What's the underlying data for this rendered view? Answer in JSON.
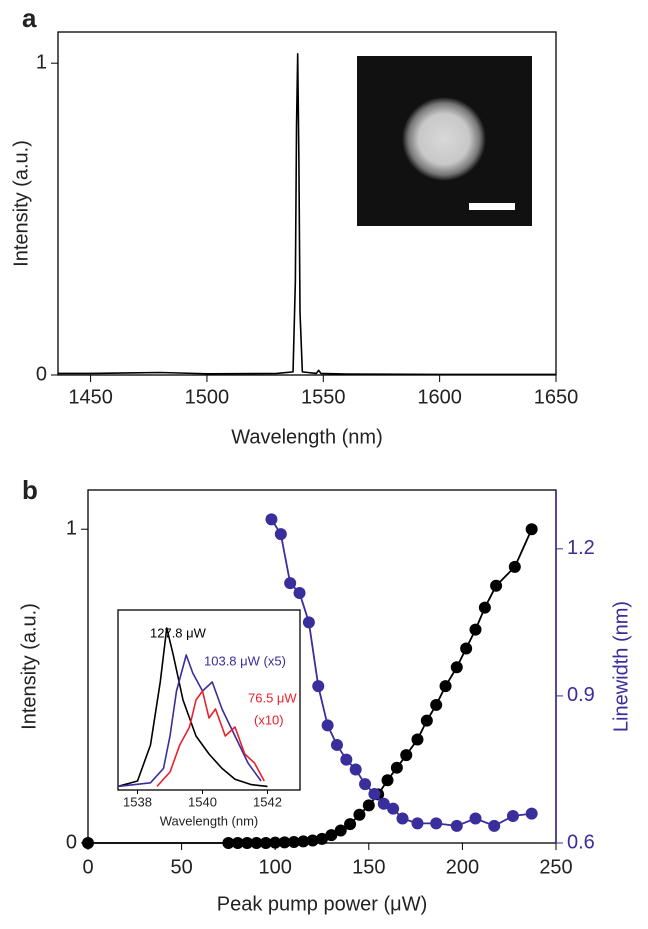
{
  "chart_data": [
    {
      "type": "line",
      "panel_label": "a",
      "xlabel": "Wavelength (nm)",
      "ylabel": "Intensity (a.u.)",
      "xlim": [
        1436,
        1650
      ],
      "xticks": [
        1450,
        1500,
        1550,
        1600,
        1650
      ],
      "ylim": [
        0,
        1.1
      ],
      "yticks": [
        0,
        1
      ],
      "series": [
        {
          "color": "#000000",
          "x": [
            1436,
            1450,
            1480,
            1500,
            1530,
            1537,
            1538,
            1538.5,
            1539,
            1539.5,
            1540,
            1541,
            1547,
            1548,
            1549,
            1560,
            1600,
            1650
          ],
          "values": [
            0.005,
            0.005,
            0.008,
            0.004,
            0.005,
            0.01,
            0.3,
            0.8,
            1.03,
            0.7,
            0.2,
            0.01,
            0.005,
            0.015,
            0.005,
            0.003,
            0.002,
            0.002
          ]
        }
      ]
    },
    {
      "type": "line",
      "markers": true,
      "panel_label": "b",
      "xlabel": "Peak pump power (μW)",
      "ylabel": "Intensity (a.u.)",
      "y2label": "Linewidth (nm)",
      "xlim": [
        0,
        250
      ],
      "xticks": [
        0,
        50,
        100,
        150,
        200,
        250
      ],
      "ylim": [
        0,
        1.125
      ],
      "yticks": [
        0,
        1
      ],
      "y2lim": [
        0.6,
        1.32
      ],
      "y2ticks": [
        0.6,
        0.9,
        1.2
      ],
      "series": [
        {
          "color": "#000000",
          "x": [
            0,
            75,
            80,
            85,
            90,
            95,
            100,
            105,
            110,
            115,
            120,
            125,
            130,
            135,
            140,
            145,
            150,
            155,
            160,
            165,
            170,
            176,
            181,
            186,
            191,
            197,
            202,
            207,
            212,
            218,
            228,
            237
          ],
          "values": [
            0,
            0,
            0,
            0,
            0,
            0,
            0.001,
            0.002,
            0.003,
            0.005,
            0.008,
            0.013,
            0.025,
            0.04,
            0.06,
            0.09,
            0.12,
            0.155,
            0.2,
            0.24,
            0.28,
            0.33,
            0.39,
            0.44,
            0.5,
            0.56,
            0.62,
            0.68,
            0.75,
            0.82,
            0.88,
            1.0
          ]
        },
        {
          "color": "#3a2d9c",
          "axis": "y2",
          "x": [
            98,
            103,
            108,
            113,
            118,
            123,
            128,
            133,
            138,
            143,
            148,
            153,
            158,
            163,
            168,
            176,
            186,
            197,
            207,
            217,
            227,
            237
          ],
          "values": [
            1.26,
            1.23,
            1.13,
            1.11,
            1.05,
            0.92,
            0.84,
            0.8,
            0.77,
            0.75,
            0.72,
            0.7,
            0.68,
            0.67,
            0.65,
            0.64,
            0.64,
            0.635,
            0.65,
            0.635,
            0.655,
            0.66
          ]
        }
      ]
    },
    {
      "type": "line",
      "xlabel": "Wavelength (nm)",
      "xlim": [
        1537.4,
        1543
      ],
      "xticks": [
        1538,
        1540,
        1542
      ],
      "ylim": [
        0,
        1
      ],
      "annotations": [
        {
          "text": "127.8 μW",
          "color": "#000000"
        },
        {
          "text": "103.8 μW (x5)",
          "color": "#3a2d9c"
        },
        {
          "text": "76.5 μW",
          "color": "#e8202a"
        },
        {
          "text": "(x10)",
          "color": "#e8202a"
        }
      ],
      "series": [
        {
          "color": "#000000",
          "x": [
            1537.4,
            1538.0,
            1538.4,
            1538.7,
            1538.9,
            1539.1,
            1539.4,
            1539.8,
            1540.2,
            1540.6,
            1541.0,
            1541.5,
            1542.0
          ],
          "values": [
            0.02,
            0.05,
            0.25,
            0.6,
            0.9,
            0.75,
            0.5,
            0.3,
            0.2,
            0.12,
            0.06,
            0.03,
            0.02
          ]
        },
        {
          "color": "#3a2d9c",
          "x": [
            1537.4,
            1538.4,
            1538.8,
            1539.0,
            1539.2,
            1539.5,
            1539.7,
            1540.0,
            1540.3,
            1540.6,
            1541.0,
            1541.4,
            1541.8
          ],
          "values": [
            0.02,
            0.04,
            0.12,
            0.3,
            0.55,
            0.75,
            0.65,
            0.55,
            0.6,
            0.45,
            0.3,
            0.15,
            0.05
          ]
        },
        {
          "color": "#e8202a",
          "x": [
            1538.6,
            1539.0,
            1539.3,
            1539.6,
            1539.8,
            1540.0,
            1540.2,
            1540.4,
            1540.7,
            1541.0,
            1541.3,
            1541.6,
            1541.9
          ],
          "values": [
            0.02,
            0.1,
            0.25,
            0.35,
            0.5,
            0.55,
            0.4,
            0.45,
            0.3,
            0.35,
            0.2,
            0.15,
            0.05
          ]
        }
      ]
    }
  ]
}
